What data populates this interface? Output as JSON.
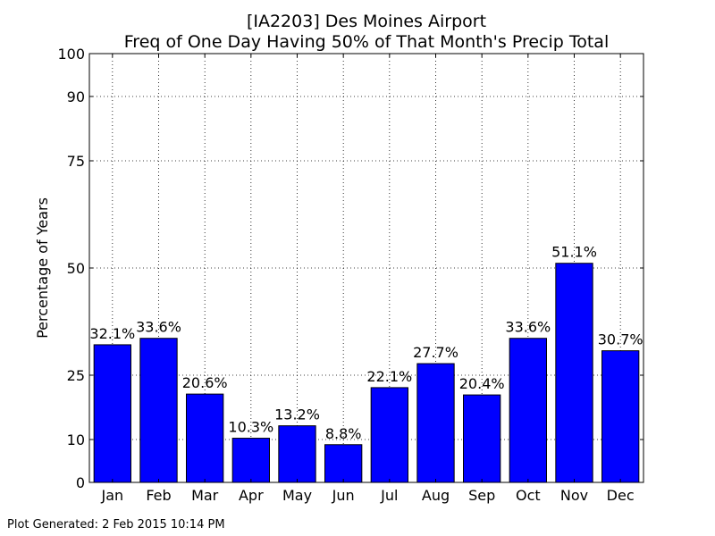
{
  "footer": {
    "generated": "Plot Generated: 2 Feb 2015 10:14 PM"
  },
  "chart_data": {
    "type": "bar",
    "title": "[IA2203] Des Moines Airport",
    "subtitle": "Freq of One Day Having 50% of That Month's Precip Total",
    "xlabel": "",
    "ylabel": "Percentage of Years",
    "ylim": [
      0,
      100
    ],
    "yticks": [
      0,
      10,
      25,
      50,
      75,
      90,
      100
    ],
    "grid": true,
    "bar_color": "#0000ff",
    "categories": [
      "Jan",
      "Feb",
      "Mar",
      "Apr",
      "May",
      "Jun",
      "Jul",
      "Aug",
      "Sep",
      "Oct",
      "Nov",
      "Dec"
    ],
    "values": [
      32.1,
      33.6,
      20.6,
      10.3,
      13.2,
      8.8,
      22.1,
      27.7,
      20.4,
      33.6,
      51.1,
      30.7
    ],
    "value_labels": [
      "32.1%",
      "33.6%",
      "20.6%",
      "10.3%",
      "13.2%",
      "8.8%",
      "22.1%",
      "27.7%",
      "20.4%",
      "33.6%",
      "51.1%",
      "30.7%"
    ]
  }
}
